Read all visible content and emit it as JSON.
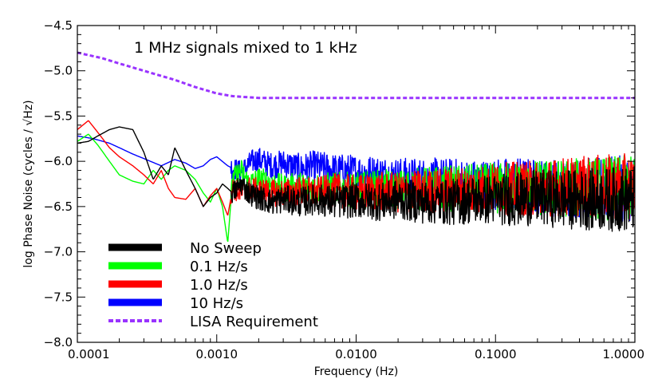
{
  "chart_data": {
    "type": "line",
    "title": "",
    "annotation": "1 MHz signals mixed to 1 kHz",
    "xlabel": "Frequency (Hz)",
    "ylabel": "log Phase Noise (cycles / √Hz)",
    "x_scale": "log",
    "xlim": [
      0.0001,
      1.0
    ],
    "ylim": [
      -8.0,
      -4.5
    ],
    "grid": false,
    "legend_position": "bottom-left",
    "x_ticks": [
      0.0001,
      0.001,
      0.01,
      0.1,
      1.0
    ],
    "x_tick_labels": [
      "0.0001",
      "0.0010",
      "0.0100",
      "0.1000",
      "1.0000"
    ],
    "y_ticks": [
      -8.0,
      -7.5,
      -7.0,
      -6.5,
      -6.0,
      -5.5,
      -5.0,
      -4.5
    ],
    "y_tick_labels": [
      "−8.0",
      "−7.5",
      "−7.0",
      "−6.5",
      "−6.0",
      "−5.5",
      "−5.0",
      "−4.5"
    ],
    "series": [
      {
        "name": "LISA Requirement",
        "color": "#9933ff",
        "dashed": true,
        "x": [
          0.0001,
          0.00015,
          0.0002,
          0.0003,
          0.0005,
          0.0007,
          0.001,
          0.0013,
          0.0016,
          0.002,
          0.003,
          0.01,
          0.1,
          1.0
        ],
        "y": [
          -4.8,
          -4.86,
          -4.92,
          -5.0,
          -5.1,
          -5.18,
          -5.25,
          -5.28,
          -5.29,
          -5.3,
          -5.3,
          -5.3,
          -5.3,
          -5.3
        ]
      },
      {
        "name": "10 Hz/s",
        "color": "#0000ff",
        "x": [
          0.0001,
          0.00013,
          0.00017,
          0.0002,
          0.00025,
          0.0003,
          0.0004,
          0.0005,
          0.0006,
          0.0007,
          0.0008,
          0.0009,
          0.001,
          0.0012,
          0.0015,
          0.0018,
          0.002,
          0.0025,
          0.003,
          0.004,
          0.005,
          0.007,
          0.01,
          0.015,
          0.02,
          0.03,
          0.05,
          0.07,
          0.1,
          0.15,
          0.2,
          0.3,
          0.5,
          0.7,
          1.0
        ],
        "y": [
          -5.72,
          -5.75,
          -5.8,
          -5.85,
          -5.92,
          -5.97,
          -6.05,
          -5.98,
          -6.02,
          -6.08,
          -6.05,
          -5.98,
          -5.95,
          -6.05,
          -6.12,
          -6.0,
          -5.98,
          -6.05,
          -6.02,
          -6.08,
          -6.05,
          -6.1,
          -6.12,
          -6.15,
          -6.18,
          -6.2,
          -6.22,
          -6.25,
          -6.25,
          -6.25,
          -6.28,
          -6.3,
          -6.3,
          -6.3,
          -6.3
        ]
      },
      {
        "name": "0.1 Hz/s",
        "color": "#00ff00",
        "x": [
          0.0001,
          0.00012,
          0.00014,
          0.00017,
          0.0002,
          0.00025,
          0.0003,
          0.00035,
          0.0004,
          0.00045,
          0.0005,
          0.0006,
          0.0007,
          0.0008,
          0.0009,
          0.001,
          0.0011,
          0.0012,
          0.0013,
          0.0015,
          0.0017,
          0.002,
          0.0025,
          0.003,
          0.004,
          0.005,
          0.007,
          0.01,
          0.015,
          0.02,
          0.03,
          0.05,
          0.07,
          0.1,
          0.15,
          0.2,
          0.3,
          0.5,
          0.7,
          1.0
        ],
        "y": [
          -5.78,
          -5.7,
          -5.82,
          -6.0,
          -6.15,
          -6.22,
          -6.25,
          -6.1,
          -6.2,
          -6.1,
          -6.05,
          -6.1,
          -6.2,
          -6.35,
          -6.45,
          -6.3,
          -6.5,
          -6.9,
          -6.2,
          -6.1,
          -6.25,
          -6.2,
          -6.25,
          -6.3,
          -6.28,
          -6.3,
          -6.3,
          -6.32,
          -6.3,
          -6.32,
          -6.3,
          -6.3,
          -6.3,
          -6.3,
          -6.3,
          -6.3,
          -6.3,
          -6.3,
          -6.3,
          -6.3
        ]
      },
      {
        "name": "1.0 Hz/s",
        "color": "#ff0000",
        "x": [
          0.0001,
          0.00012,
          0.00014,
          0.00017,
          0.0002,
          0.00025,
          0.0003,
          0.00035,
          0.0004,
          0.00045,
          0.0005,
          0.0006,
          0.0007,
          0.0008,
          0.0009,
          0.001,
          0.0011,
          0.0012,
          0.0013,
          0.0015,
          0.0017,
          0.002,
          0.0025,
          0.003,
          0.004,
          0.005,
          0.007,
          0.01,
          0.015,
          0.02,
          0.03,
          0.05,
          0.07,
          0.1,
          0.15,
          0.2,
          0.3,
          0.5,
          0.7,
          1.0
        ],
        "y": [
          -5.65,
          -5.55,
          -5.68,
          -5.85,
          -5.95,
          -6.05,
          -6.15,
          -6.25,
          -6.1,
          -6.3,
          -6.4,
          -6.42,
          -6.3,
          -6.5,
          -6.38,
          -6.3,
          -6.45,
          -6.6,
          -6.3,
          -6.35,
          -6.3,
          -6.32,
          -6.35,
          -6.35,
          -6.33,
          -6.35,
          -6.32,
          -6.35,
          -6.33,
          -6.35,
          -6.33,
          -6.32,
          -6.32,
          -6.3,
          -6.3,
          -6.3,
          -6.28,
          -6.28,
          -6.28,
          -6.28
        ]
      },
      {
        "name": "No Sweep",
        "color": "#000000",
        "x": [
          0.0001,
          0.00012,
          0.00014,
          0.00017,
          0.0002,
          0.00025,
          0.0003,
          0.00035,
          0.0004,
          0.00045,
          0.0005,
          0.0006,
          0.0007,
          0.0008,
          0.0009,
          0.001,
          0.0011,
          0.0012,
          0.0013,
          0.0015,
          0.0017,
          0.002,
          0.0025,
          0.003,
          0.004,
          0.005,
          0.007,
          0.01,
          0.015,
          0.02,
          0.03,
          0.05,
          0.07,
          0.1,
          0.15,
          0.2,
          0.3,
          0.5,
          0.7,
          1.0
        ],
        "y": [
          -5.8,
          -5.78,
          -5.72,
          -5.65,
          -5.62,
          -5.65,
          -5.9,
          -6.2,
          -6.05,
          -6.15,
          -5.85,
          -6.1,
          -6.3,
          -6.5,
          -6.4,
          -6.35,
          -6.25,
          -6.3,
          -6.35,
          -6.25,
          -6.35,
          -6.4,
          -6.45,
          -6.42,
          -6.45,
          -6.42,
          -6.45,
          -6.43,
          -6.45,
          -6.42,
          -6.45,
          -6.45,
          -6.42,
          -6.42,
          -6.42,
          -6.4,
          -6.42,
          -6.42,
          -6.42,
          -6.42
        ]
      }
    ],
    "legend_order": [
      "No Sweep",
      "0.1 Hz/s",
      "1.0 Hz/s",
      "10 Hz/s",
      "LISA Requirement"
    ]
  }
}
